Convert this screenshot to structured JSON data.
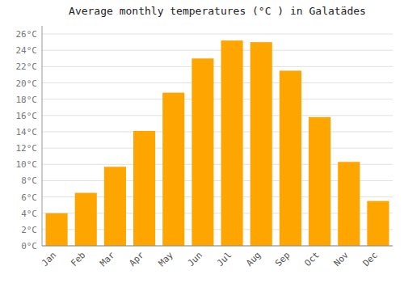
{
  "chart_data": {
    "type": "bar",
    "title": "Average monthly temperatures (°C ) in Galatädes",
    "categories": [
      "Jan",
      "Feb",
      "Mar",
      "Apr",
      "May",
      "Jun",
      "Jul",
      "Aug",
      "Sep",
      "Oct",
      "Nov",
      "Dec"
    ],
    "values": [
      4.0,
      6.5,
      9.7,
      14.1,
      18.8,
      23.0,
      25.2,
      25.0,
      21.5,
      15.8,
      10.3,
      5.5
    ],
    "color": "#FFA500",
    "ylim": [
      0,
      27
    ],
    "yticks": [
      {
        "value": 0,
        "label": "0°C"
      },
      {
        "value": 2,
        "label": "2°C"
      },
      {
        "value": 4,
        "label": "4°C"
      },
      {
        "value": 6,
        "label": "6°C"
      },
      {
        "value": 8,
        "label": "8°C"
      },
      {
        "value": 10,
        "label": "10°C"
      },
      {
        "value": 12,
        "label": "12°C"
      },
      {
        "value": 14,
        "label": "14°C"
      },
      {
        "value": 16,
        "label": "16°C"
      },
      {
        "value": 18,
        "label": "18°C"
      },
      {
        "value": 20,
        "label": "20°C"
      },
      {
        "value": 22,
        "label": "22°C"
      },
      {
        "value": 24,
        "label": "24°C"
      },
      {
        "value": 26,
        "label": "26°C"
      }
    ],
    "grid": true
  }
}
